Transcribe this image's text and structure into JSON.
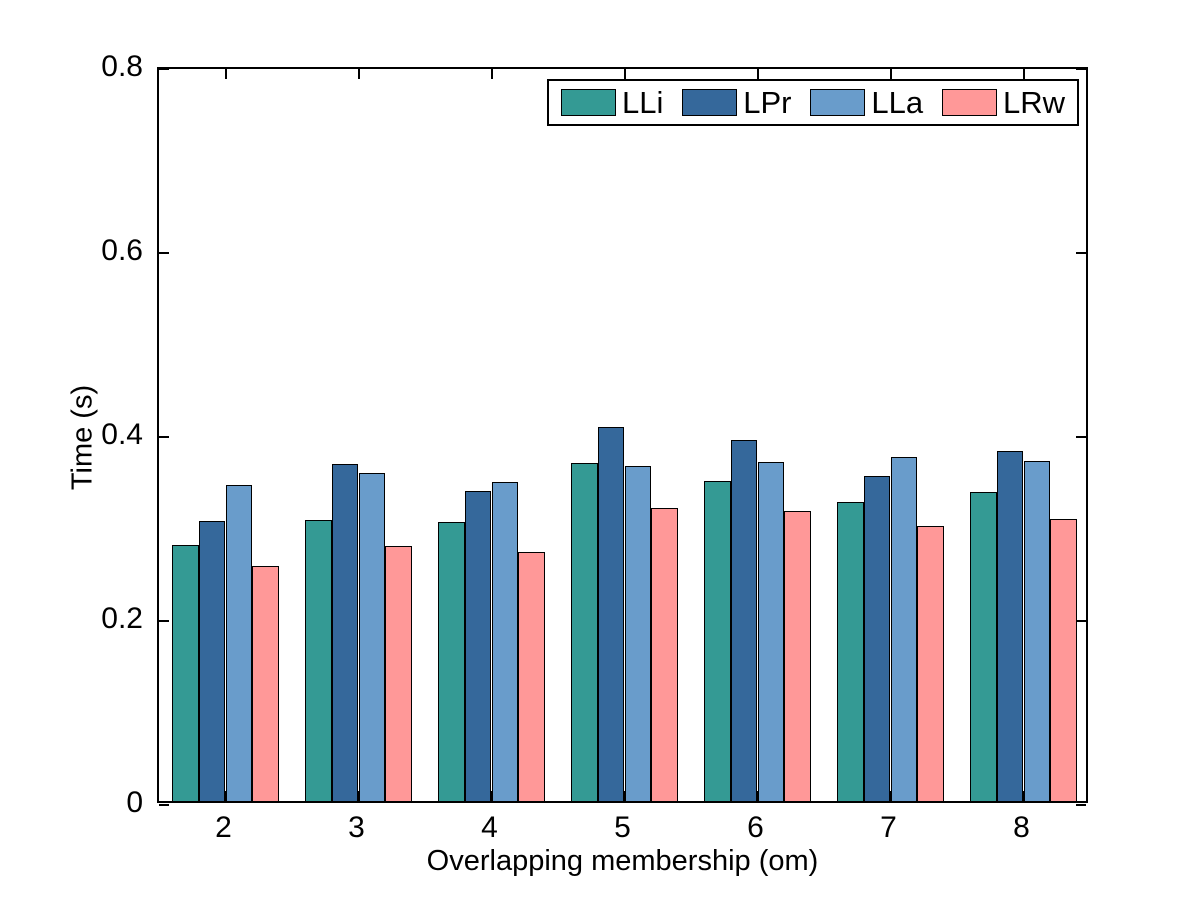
{
  "figure": {
    "background": "#ffffff",
    "axis_color": "#000000"
  },
  "chart_data": {
    "type": "bar",
    "title": "",
    "xlabel": "Overlapping membership (om)",
    "ylabel": "Time (s)",
    "categories": [
      "2",
      "3",
      "4",
      "5",
      "6",
      "7",
      "8"
    ],
    "series": [
      {
        "name": "LLi",
        "color": "#349A94",
        "values": [
          0.278,
          0.305,
          0.303,
          0.367,
          0.348,
          0.325,
          0.336
        ]
      },
      {
        "name": "LPr",
        "color": "#35689B",
        "values": [
          0.304,
          0.366,
          0.337,
          0.406,
          0.392,
          0.353,
          0.38
        ]
      },
      {
        "name": "LLa",
        "color": "#699CCB",
        "values": [
          0.343,
          0.356,
          0.347,
          0.364,
          0.368,
          0.374,
          0.37
        ]
      },
      {
        "name": "LRw",
        "color": "#FF9898",
        "values": [
          0.255,
          0.277,
          0.271,
          0.318,
          0.315,
          0.299,
          0.307
        ]
      }
    ],
    "ylim": [
      0,
      0.8
    ],
    "yticks": [
      "0",
      "0.2",
      "0.4",
      "0.6",
      "0.8"
    ],
    "bar_edge_color": "#000000",
    "grid": false,
    "legend_position": "top-right-inside",
    "legend_labels": [
      "LLi",
      "LPr",
      "LLa",
      "LRw"
    ],
    "group_width_fraction": 0.8
  }
}
